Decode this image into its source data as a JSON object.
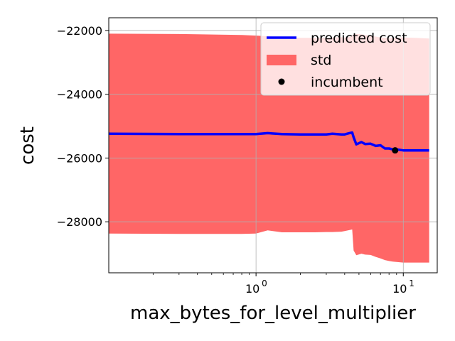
{
  "chart_data": {
    "type": "line",
    "xlabel": "max_bytes_for_level_multiplier",
    "ylabel": "cost",
    "xscale": "log",
    "xlim": [
      0.1,
      17.0
    ],
    "ylim": [
      -29600,
      -21600
    ],
    "grid": true,
    "legend_placement": "top-right",
    "x_ticks": [
      {
        "value": 1,
        "label": "10",
        "exp": "0"
      },
      {
        "value": 10,
        "label": "10",
        "exp": "1"
      }
    ],
    "y_ticks": [
      {
        "value": -22000,
        "label": "−22000"
      },
      {
        "value": -24000,
        "label": "−24000"
      },
      {
        "value": -26000,
        "label": "−26000"
      },
      {
        "value": -28000,
        "label": "−28000"
      }
    ],
    "series": [
      {
        "name": "predicted cost",
        "color": "#0000ff",
        "x": [
          0.1,
          0.3,
          0.8,
          1.0,
          1.2,
          1.5,
          2.0,
          2.5,
          3.0,
          3.3,
          3.8,
          4.0,
          4.3,
          4.5,
          4.6,
          4.8,
          5.2,
          5.5,
          6.0,
          6.5,
          7.0,
          7.5,
          8.0,
          8.5,
          9.0,
          10.0,
          12.0,
          15.0
        ],
        "y": [
          -25240,
          -25250,
          -25250,
          -25250,
          -25220,
          -25250,
          -25260,
          -25260,
          -25260,
          -25240,
          -25260,
          -25260,
          -25220,
          -25200,
          -25350,
          -25570,
          -25500,
          -25560,
          -25550,
          -25620,
          -25600,
          -25700,
          -25700,
          -25730,
          -25730,
          -25760,
          -25760,
          -25760
        ]
      },
      {
        "name": "std",
        "color": "#ff6666",
        "x": [
          0.1,
          0.3,
          0.8,
          1.0,
          1.2,
          1.5,
          2.0,
          2.5,
          3.0,
          3.3,
          3.8,
          4.0,
          4.3,
          4.5,
          4.6,
          4.8,
          5.2,
          5.5,
          6.0,
          6.5,
          7.0,
          7.5,
          8.0,
          8.5,
          9.0,
          10.0,
          12.0,
          15.0
        ],
        "upper": [
          -22100,
          -22110,
          -22140,
          -22160,
          -22180,
          -22220,
          -22230,
          -22230,
          -22230,
          -22220,
          -22210,
          -22220,
          -22200,
          -22170,
          -22120,
          -22110,
          -22120,
          -22140,
          -22160,
          -22190,
          -22220,
          -22230,
          -22240,
          -22230,
          -22220,
          -22220,
          -22230,
          -22250
        ],
        "lower": [
          -28370,
          -28380,
          -28380,
          -28370,
          -28270,
          -28330,
          -28330,
          -28330,
          -28320,
          -28320,
          -28310,
          -28290,
          -28260,
          -28240,
          -28900,
          -29050,
          -29000,
          -29030,
          -29040,
          -29100,
          -29150,
          -29200,
          -29230,
          -29250,
          -29260,
          -29280,
          -29280,
          -29280
        ]
      }
    ],
    "incumbent": {
      "name": "incumbent",
      "color": "#000000",
      "x": 8.8,
      "y": -25760
    },
    "legend": [
      {
        "label": "predicted cost",
        "kind": "line",
        "color": "#0000ff"
      },
      {
        "label": "std",
        "kind": "patch",
        "color": "#ff6666"
      },
      {
        "label": "incumbent",
        "kind": "marker",
        "color": "#000000"
      }
    ]
  }
}
